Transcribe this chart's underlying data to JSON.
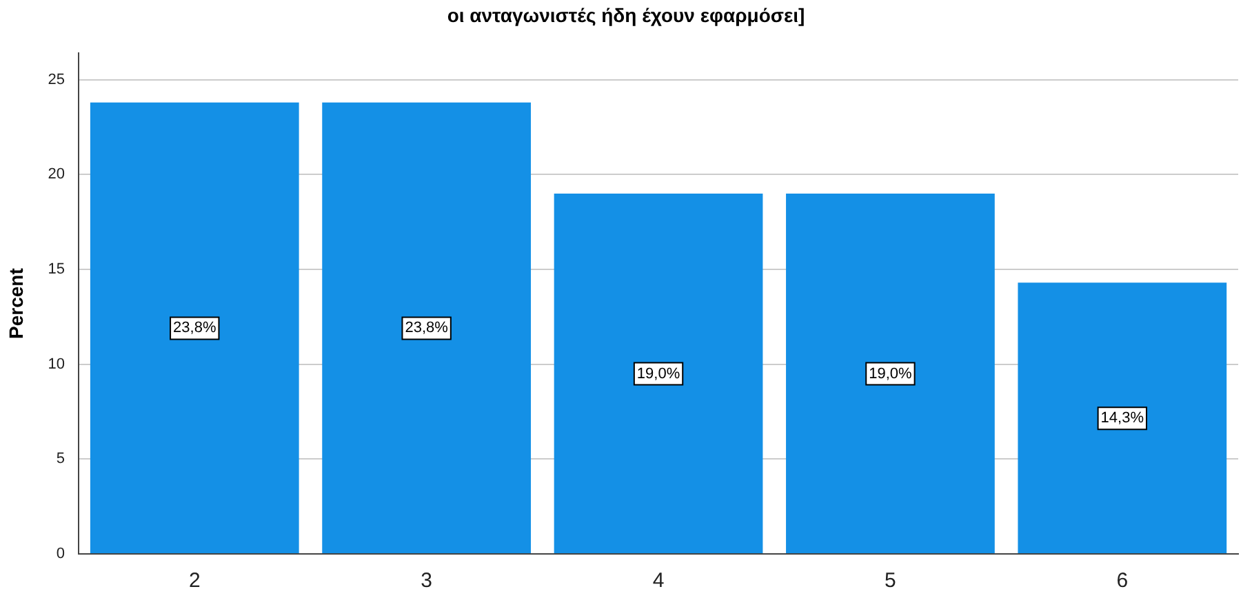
{
  "chart_data": {
    "type": "bar",
    "title": "οι ανταγωνιστές ήδη έχουν εφαρμόσει]",
    "ylabel": "Percent",
    "categories": [
      "2",
      "3",
      "4",
      "5",
      "6"
    ],
    "values": [
      23.8,
      23.8,
      19.0,
      19.0,
      14.3
    ],
    "value_labels": [
      "23,8%",
      "23,8%",
      "19,0%",
      "19,0%",
      "14,3%"
    ],
    "color": "#1490e6",
    "ylim": [
      0,
      26.4
    ],
    "yticks": [
      0,
      5,
      10,
      15,
      20,
      25
    ],
    "grid": "y",
    "legend": false
  }
}
